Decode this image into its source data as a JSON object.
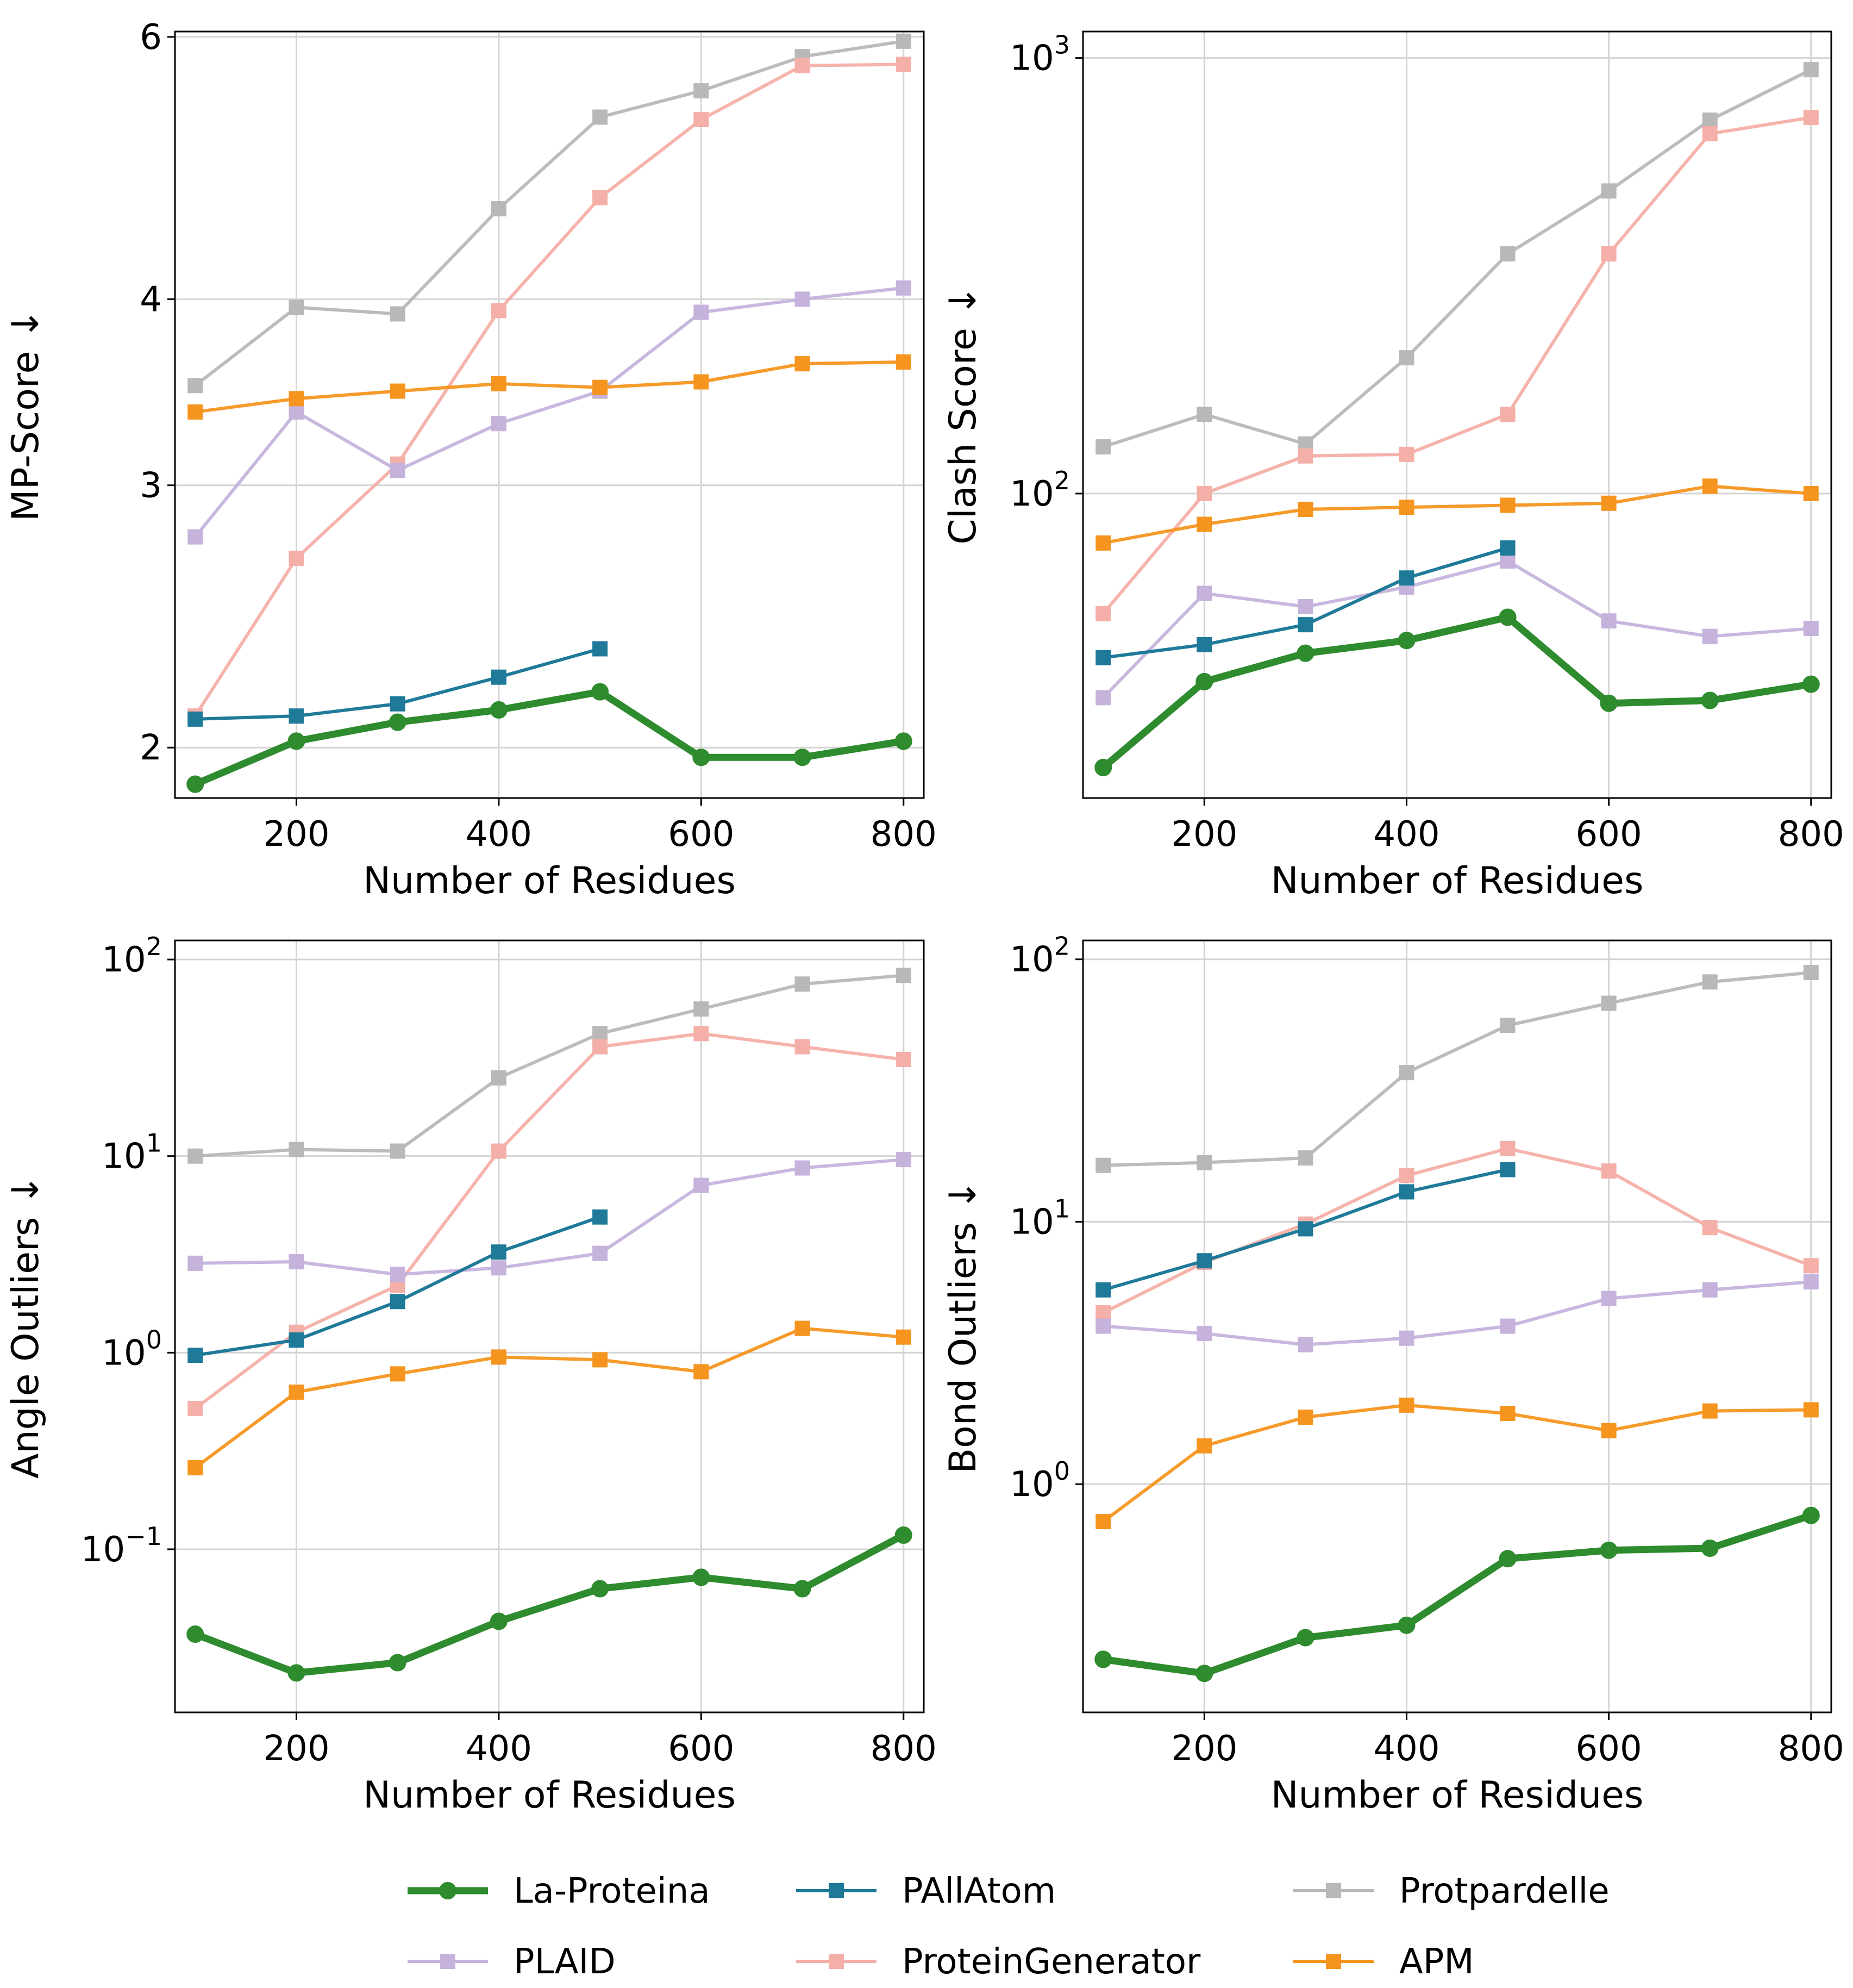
{
  "series_styles": [
    {
      "name": "La-Proteina",
      "color": "#2e8b2e",
      "marker": "circle"
    },
    {
      "name": "PAllAtom",
      "color": "#1f7a99",
      "marker": "square"
    },
    {
      "name": "Protpardelle",
      "color": "#b8b8b8",
      "marker": "square"
    },
    {
      "name": "PLAID",
      "color": "#c5b3dc",
      "marker": "square"
    },
    {
      "name": "ProteinGenerator",
      "color": "#f4afa8",
      "marker": "square"
    },
    {
      "name": "APM",
      "color": "#f5951f",
      "marker": "square"
    }
  ],
  "legend": {
    "placement": "bottom-center",
    "items": [
      "La-Proteina",
      "PAllAtom",
      "Protpardelle",
      "PLAID",
      "ProteinGenerator",
      "APM"
    ]
  },
  "chart_data": [
    {
      "type": "line",
      "xlabel": "Number of Residues",
      "ylabel": "MP-Score ↓",
      "yscale": "log",
      "xlim": [
        80,
        820
      ],
      "ylim": [
        1.85,
        6.05
      ],
      "xticks": [
        200,
        400,
        600,
        800
      ],
      "yticks": [
        {
          "v": 2,
          "label": "2"
        },
        {
          "v": 3,
          "label": "3"
        },
        {
          "v": 4,
          "label": "4"
        },
        {
          "v": 6,
          "label": "6"
        }
      ],
      "grid": true,
      "x": [
        100,
        200,
        300,
        400,
        500,
        600,
        700,
        800
      ],
      "series": [
        {
          "name": "Protpardelle",
          "values": [
            3.5,
            3.95,
            3.91,
            4.6,
            5.3,
            5.52,
            5.82,
            5.96
          ]
        },
        {
          "name": "ProteinGenerator",
          "values": [
            2.1,
            2.68,
            3.1,
            3.93,
            4.68,
            5.28,
            5.74,
            5.75
          ]
        },
        {
          "name": "PLAID",
          "values": [
            2.77,
            3.36,
            3.07,
            3.3,
            3.47,
            3.92,
            4.0,
            4.07
          ]
        },
        {
          "name": "APM",
          "values": [
            3.36,
            3.43,
            3.47,
            3.51,
            3.49,
            3.52,
            3.62,
            3.63
          ]
        },
        {
          "name": "PAllAtom",
          "values": [
            2.09,
            2.1,
            2.14,
            2.23,
            2.33,
            null,
            null,
            null
          ]
        },
        {
          "name": "La-Proteina",
          "values": [
            1.89,
            2.02,
            2.08,
            2.12,
            2.18,
            1.97,
            1.97,
            2.02
          ]
        }
      ]
    },
    {
      "type": "line",
      "xlabel": "Number of Residues",
      "ylabel": "Clash Score ↓",
      "yscale": "log",
      "xlim": [
        80,
        820
      ],
      "ylim": [
        20,
        1150
      ],
      "xticks": [
        200,
        400,
        600,
        800
      ],
      "yticks": [
        {
          "v": 100,
          "label": "10",
          "sup": "2"
        },
        {
          "v": 1000,
          "label": "10",
          "sup": "3"
        }
      ],
      "grid": true,
      "x": [
        100,
        200,
        300,
        400,
        500,
        600,
        700,
        800
      ],
      "series": [
        {
          "name": "Protpardelle",
          "values": [
            128,
            152,
            130,
            205,
            355,
            495,
            720,
            940
          ]
        },
        {
          "name": "ProteinGenerator",
          "values": [
            53,
            100,
            122,
            123,
            152,
            355,
            670,
            730
          ]
        },
        {
          "name": "PLAID",
          "values": [
            34,
            59,
            55,
            61,
            70,
            51,
            47,
            49
          ]
        },
        {
          "name": "APM",
          "values": [
            77,
            85,
            92,
            93,
            94,
            95,
            104,
            100
          ]
        },
        {
          "name": "PAllAtom",
          "values": [
            42,
            45,
            50,
            64,
            75,
            null,
            null,
            null
          ]
        },
        {
          "name": "La-Proteina",
          "values": [
            23.5,
            37,
            43,
            46,
            52,
            33,
            33.5,
            36.5
          ]
        }
      ]
    },
    {
      "type": "line",
      "xlabel": "Number of Residues",
      "ylabel": "Angle Outliers ↓",
      "yscale": "log",
      "xlim": [
        80,
        820
      ],
      "ylim": [
        0.0148,
        125
      ],
      "xticks": [
        200,
        400,
        600,
        800
      ],
      "yticks": [
        {
          "v": 0.1,
          "label": "10",
          "sup": "−1"
        },
        {
          "v": 1,
          "label": "10",
          "sup": "0"
        },
        {
          "v": 10,
          "label": "10",
          "sup": "1"
        },
        {
          "v": 100,
          "label": "10",
          "sup": "2"
        }
      ],
      "grid": true,
      "x": [
        100,
        200,
        300,
        400,
        500,
        600,
        700,
        800
      ],
      "series": [
        {
          "name": "Protpardelle",
          "values": [
            10,
            10.8,
            10.6,
            25,
            42,
            56,
            75,
            83
          ]
        },
        {
          "name": "ProteinGenerator",
          "values": [
            0.52,
            1.27,
            2.2,
            10.6,
            36,
            42,
            36,
            31
          ]
        },
        {
          "name": "PLAID",
          "values": [
            2.85,
            2.9,
            2.5,
            2.7,
            3.2,
            7.1,
            8.7,
            9.6
          ]
        },
        {
          "name": "APM",
          "values": [
            0.26,
            0.63,
            0.78,
            0.95,
            0.92,
            0.8,
            1.33,
            1.2
          ]
        },
        {
          "name": "PAllAtom",
          "values": [
            0.97,
            1.16,
            1.82,
            3.25,
            4.9,
            null,
            null,
            null
          ]
        },
        {
          "name": "La-Proteina",
          "values": [
            0.037,
            0.0235,
            0.0265,
            0.043,
            0.063,
            0.072,
            0.063,
            0.118
          ]
        }
      ]
    },
    {
      "type": "line",
      "xlabel": "Number of Residues",
      "ylabel": "Bond Outliers ↓",
      "yscale": "log",
      "xlim": [
        80,
        820
      ],
      "ylim": [
        0.135,
        118
      ],
      "xticks": [
        200,
        400,
        600,
        800
      ],
      "yticks": [
        {
          "v": 1,
          "label": "10",
          "sup": "0"
        },
        {
          "v": 10,
          "label": "10",
          "sup": "1"
        },
        {
          "v": 100,
          "label": "10",
          "sup": "2"
        }
      ],
      "grid": true,
      "x": [
        100,
        200,
        300,
        400,
        500,
        600,
        700,
        800
      ],
      "series": [
        {
          "name": "Protpardelle",
          "values": [
            16.4,
            16.8,
            17.5,
            37,
            56,
            68,
            82,
            89
          ]
        },
        {
          "name": "ProteinGenerator",
          "values": [
            4.5,
            7.0,
            9.8,
            15,
            19,
            15.6,
            9.5,
            6.8
          ]
        },
        {
          "name": "PLAID",
          "values": [
            4.0,
            3.75,
            3.4,
            3.6,
            4.0,
            5.1,
            5.5,
            5.9
          ]
        },
        {
          "name": "APM",
          "values": [
            0.72,
            1.4,
            1.8,
            2.0,
            1.86,
            1.6,
            1.9,
            1.92
          ]
        },
        {
          "name": "PAllAtom",
          "values": [
            5.5,
            7.1,
            9.4,
            13.0,
            15.8,
            null,
            null,
            null
          ]
        },
        {
          "name": "La-Proteina",
          "values": [
            0.215,
            0.19,
            0.26,
            0.29,
            0.52,
            0.56,
            0.57,
            0.76
          ]
        }
      ]
    }
  ]
}
